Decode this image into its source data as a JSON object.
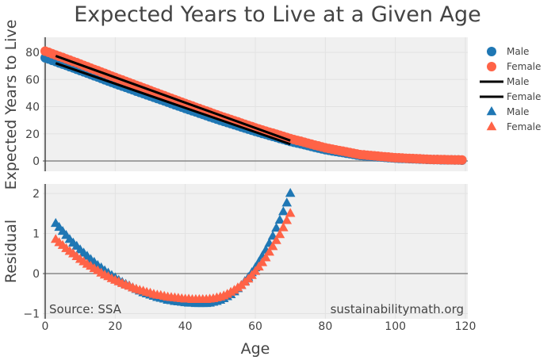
{
  "title": "Expected Years to Live at a Given Age",
  "colors": {
    "male": "#1f77b4",
    "female": "#ff6347",
    "fit": "#000000",
    "plot_bg": "#f0f0f0",
    "grid": "#e2e2e2"
  },
  "chart_data": [
    {
      "type": "scatter",
      "ylabel": "Expected Years to Live",
      "xlim": [
        0,
        120
      ],
      "ylim": [
        -5,
        90
      ],
      "yticks": [
        "0",
        "20",
        "40",
        "60",
        "80"
      ],
      "ytick_values": [
        0,
        20,
        40,
        60,
        80
      ],
      "grid": true,
      "x_start": 0,
      "series": [
        {
          "name": "Male",
          "marker": "circle",
          "color": "#1f77b4",
          "values": [
            76.0,
            75.1,
            74.1,
            73.2,
            72.2,
            71.3,
            70.4,
            69.4,
            68.5,
            67.5,
            66.6,
            65.6,
            64.7,
            63.7,
            62.7,
            61.8,
            60.8,
            59.8,
            58.8,
            57.9,
            56.9,
            56.0,
            55.1,
            54.2,
            53.3,
            52.4,
            51.4,
            50.5,
            49.6,
            48.7,
            47.8,
            46.9,
            46.0,
            45.1,
            44.2,
            43.3,
            42.3,
            41.4,
            40.5,
            39.6,
            38.7,
            37.8,
            36.9,
            36.1,
            35.2,
            34.3,
            33.4,
            32.5,
            31.7,
            30.8,
            29.9,
            29.1,
            28.3,
            27.5,
            26.7,
            25.9,
            25.0,
            24.2,
            23.4,
            22.6,
            21.8,
            21.1,
            20.3,
            19.6,
            18.8,
            18.1,
            17.4,
            16.6,
            15.9,
            15.1,
            14.4,
            13.8,
            13.2,
            12.6,
            12.0,
            11.4,
            10.7,
            10.1,
            9.5,
            8.9,
            8.3,
            7.9,
            7.4,
            7.0,
            6.6,
            6.2,
            5.7,
            5.3,
            4.9,
            4.4,
            4.0,
            3.8,
            3.6,
            3.4,
            3.2,
            3.1,
            2.9,
            2.7,
            2.5,
            2.3,
            2.1,
            2.0,
            1.9,
            1.8,
            1.7,
            1.6,
            1.5,
            1.4,
            1.3,
            1.2,
            1.1,
            1.0,
            1.0,
            0.9,
            0.9,
            0.8,
            0.8,
            0.7,
            0.7,
            0.6
          ]
        },
        {
          "name": "Female",
          "marker": "circle",
          "color": "#ff6347",
          "values": [
            80.9,
            80.0,
            79.0,
            78.0,
            77.1,
            76.2,
            75.2,
            74.3,
            73.3,
            72.4,
            71.4,
            70.4,
            69.4,
            68.4,
            67.4,
            66.5,
            65.5,
            64.5,
            63.5,
            62.5,
            61.5,
            60.5,
            59.6,
            58.6,
            57.7,
            56.7,
            55.7,
            54.8,
            53.8,
            52.9,
            51.9,
            50.9,
            50.0,
            49.0,
            48.1,
            47.1,
            46.1,
            45.2,
            44.2,
            43.3,
            42.3,
            41.4,
            40.5,
            39.5,
            38.6,
            37.7,
            36.8,
            35.9,
            34.9,
            34.0,
            33.1,
            32.2,
            31.4,
            30.5,
            29.6,
            28.8,
            27.9,
            27.0,
            26.1,
            25.3,
            24.4,
            23.6,
            22.8,
            22.0,
            21.2,
            20.5,
            19.7,
            18.9,
            18.1,
            17.3,
            16.5,
            15.8,
            15.1,
            14.5,
            13.8,
            13.1,
            12.4,
            11.7,
            11.1,
            10.4,
            9.7,
            9.2,
            8.7,
            8.2,
            7.7,
            7.2,
            6.7,
            6.2,
            5.7,
            5.2,
            4.7,
            4.5,
            4.2,
            4.0,
            3.8,
            3.6,
            3.3,
            3.1,
            2.9,
            2.6,
            2.4,
            2.3,
            2.2,
            2.0,
            1.9,
            1.8,
            1.7,
            1.6,
            1.4,
            1.3,
            1.2,
            1.1,
            1.1,
            1.0,
            1.0,
            0.9,
            0.9,
            0.8,
            0.8,
            0.7
          ]
        },
        {
          "name": "Male",
          "marker": "line",
          "color": "#000000",
          "x": [
            3,
            70
          ],
          "values": [
            72.0,
            12.4
          ]
        },
        {
          "name": "Female",
          "marker": "line",
          "color": "#000000",
          "x": [
            3,
            70
          ],
          "values": [
            77.35,
            15.0
          ]
        }
      ]
    },
    {
      "type": "scatter",
      "ylabel": "Residual",
      "xlabel": "Age",
      "xlim": [
        0,
        120
      ],
      "ylim": [
        -1.1,
        2.25
      ],
      "xticks": [
        "0",
        "20",
        "40",
        "60",
        "80",
        "100",
        "120"
      ],
      "xtick_values": [
        0,
        20,
        40,
        60,
        80,
        100,
        120
      ],
      "yticks": [
        "−1",
        "0",
        "1",
        "2"
      ],
      "ytick_values": [
        -1,
        0,
        1,
        2
      ],
      "grid": true,
      "x_start": 3,
      "series": [
        {
          "name": "Male",
          "marker": "triangle-up",
          "color": "#1f77b4",
          "values": [
            1.25,
            1.15,
            1.05,
            0.95,
            0.85,
            0.76,
            0.68,
            0.59,
            0.51,
            0.43,
            0.35,
            0.28,
            0.2,
            0.14,
            0.07,
            0.01,
            -0.05,
            -0.11,
            -0.17,
            -0.22,
            -0.27,
            -0.31,
            -0.36,
            -0.4,
            -0.44,
            -0.48,
            -0.51,
            -0.54,
            -0.57,
            -0.6,
            -0.62,
            -0.64,
            -0.67,
            -0.68,
            -0.7,
            -0.71,
            -0.72,
            -0.73,
            -0.74,
            -0.74,
            -0.75,
            -0.75,
            -0.75,
            -0.75,
            -0.74,
            -0.72,
            -0.7,
            -0.67,
            -0.63,
            -0.58,
            -0.53,
            -0.46,
            -0.38,
            -0.3,
            -0.2,
            -0.1,
            0.02,
            0.14,
            0.28,
            0.43,
            0.58,
            0.75,
            0.93,
            1.13,
            1.33,
            1.54,
            1.76,
            2.0
          ]
        },
        {
          "name": "Female",
          "marker": "triangle-up",
          "color": "#ff6347",
          "values": [
            0.85,
            0.77,
            0.7,
            0.62,
            0.55,
            0.49,
            0.42,
            0.35,
            0.29,
            0.23,
            0.18,
            0.12,
            0.07,
            0.01,
            -0.04,
            -0.08,
            -0.13,
            -0.17,
            -0.21,
            -0.25,
            -0.29,
            -0.32,
            -0.36,
            -0.39,
            -0.42,
            -0.44,
            -0.47,
            -0.49,
            -0.52,
            -0.54,
            -0.55,
            -0.57,
            -0.59,
            -0.6,
            -0.61,
            -0.62,
            -0.63,
            -0.64,
            -0.64,
            -0.65,
            -0.65,
            -0.65,
            -0.65,
            -0.65,
            -0.64,
            -0.63,
            -0.61,
            -0.59,
            -0.56,
            -0.52,
            -0.47,
            -0.42,
            -0.36,
            -0.3,
            -0.22,
            -0.14,
            -0.05,
            0.05,
            0.16,
            0.27,
            0.39,
            0.53,
            0.67,
            0.82,
            0.97,
            1.14,
            1.32,
            1.5
          ]
        }
      ],
      "annotations": {
        "source": "Source: SSA",
        "site": "sustainabilitymath.org"
      }
    }
  ],
  "legend": {
    "position": "right",
    "items": [
      {
        "label": "Male",
        "symbol": "circle",
        "color": "#1f77b4"
      },
      {
        "label": "Female",
        "symbol": "circle",
        "color": "#ff6347"
      },
      {
        "label": "Male",
        "symbol": "line",
        "color": "#000000"
      },
      {
        "label": "Female",
        "symbol": "line",
        "color": "#000000"
      },
      {
        "label": "Male",
        "symbol": "triangle-up",
        "color": "#1f77b4"
      },
      {
        "label": "Female",
        "symbol": "triangle-up",
        "color": "#ff6347"
      }
    ]
  }
}
